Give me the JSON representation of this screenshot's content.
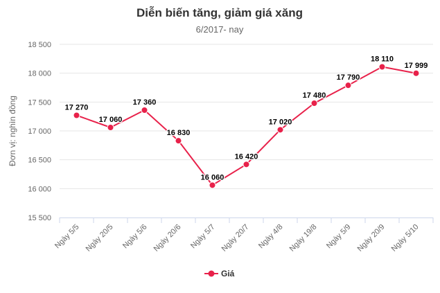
{
  "chart_data": {
    "type": "line",
    "title": "Diễn biến tăng, giảm giá xăng",
    "subtitle": "6/2017- nay",
    "ylabel": "Đơn vị: nghìn đồng",
    "ylim": [
      15500,
      18500
    ],
    "yticks": [
      15500,
      16000,
      16500,
      17000,
      17500,
      18000,
      18500
    ],
    "ytick_labels": [
      "15 500",
      "16 000",
      "16 500",
      "17 000",
      "17 500",
      "18 000",
      "18 500"
    ],
    "categories": [
      "Ngày 5/5",
      "Ngày 20/5",
      "Ngày 5/6",
      "Ngày 20/6",
      "Ngày 5/7",
      "Ngày 20/7",
      "Ngày 4/8",
      "Ngày 19/8",
      "Ngày 5/9",
      "Ngày 20/9",
      "Ngày 5/10"
    ],
    "series": [
      {
        "name": "Giá",
        "values": [
          17270,
          17060,
          17360,
          16830,
          16060,
          16420,
          17020,
          17480,
          17790,
          18110,
          17999
        ],
        "labels": [
          "17 270",
          "17 060",
          "17 360",
          "16 830",
          "16 060",
          "16 420",
          "17 020",
          "17 480",
          "17 790",
          "18 110",
          "17 999"
        ],
        "color": "#e8214a"
      }
    ],
    "grid": true,
    "legend": "bottom-center"
  }
}
